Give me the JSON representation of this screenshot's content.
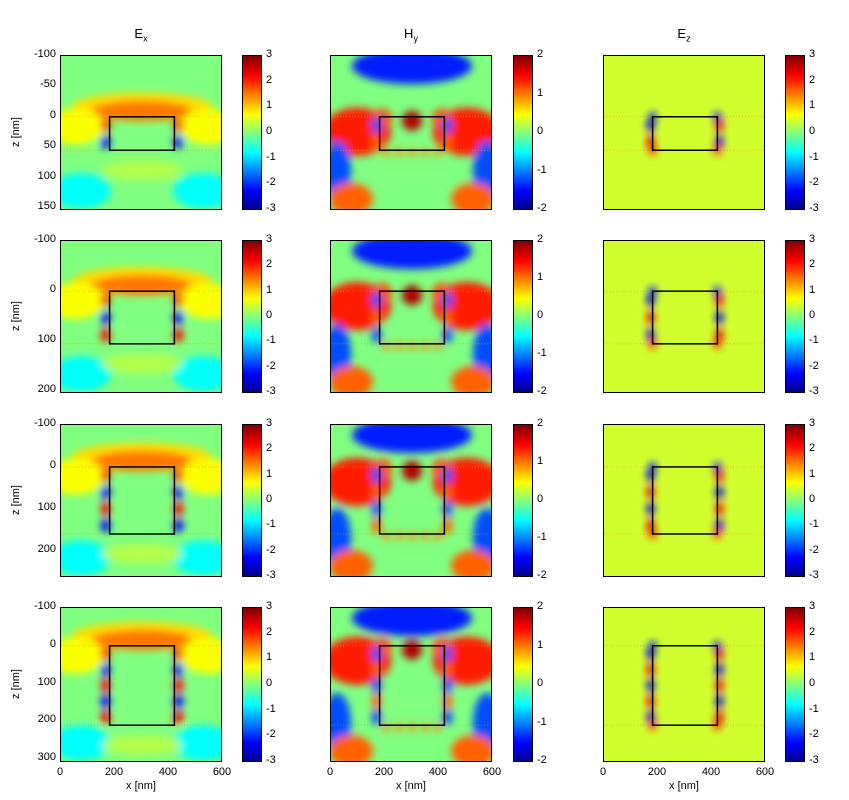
{
  "columns": [
    {
      "title_main": "E",
      "title_sub": "x",
      "clim": [
        -3,
        3
      ],
      "cbar_ticks": [
        "3",
        "2",
        "1",
        "0",
        "-1",
        "-2",
        "-3"
      ]
    },
    {
      "title_main": "H",
      "title_sub": "y",
      "clim": [
        -2,
        2
      ],
      "cbar_ticks": [
        "2",
        "1",
        "0",
        "-1",
        "-2"
      ]
    },
    {
      "title_main": "E",
      "title_sub": "z",
      "clim": [
        -3,
        3
      ],
      "cbar_ticks": [
        "3",
        "2",
        "1",
        "0",
        "-1",
        "-2",
        "-3"
      ]
    }
  ],
  "rows": [
    {
      "y_ticks": [
        "-100",
        "-50",
        "0",
        "50",
        "100",
        "150"
      ],
      "ylabel": "z [nm]"
    },
    {
      "y_ticks": [
        "-100",
        "0",
        "100",
        "200"
      ],
      "ylabel": "z [nm]"
    },
    {
      "y_ticks": [
        "-100",
        "0",
        "100",
        "200"
      ],
      "ylabel": "z [nm]"
    },
    {
      "y_ticks": [
        "-100",
        "0",
        "100",
        "200",
        "300"
      ],
      "ylabel": "z [nm]"
    }
  ],
  "x_ticks": [
    "0",
    "200",
    "400",
    "600"
  ],
  "xlabel": "x [nm]",
  "chart_data": {
    "type": "heatmap",
    "colormap": "jet",
    "x_range_nm": [
      0,
      600
    ],
    "rectangle_x_nm": [
      180,
      420
    ],
    "panels": [
      {
        "row": 0,
        "z_range_nm": [
          -100,
          155
        ],
        "rect_z_nm": [
          0,
          55
        ]
      },
      {
        "row": 1,
        "z_range_nm": [
          -100,
          205
        ],
        "rect_z_nm": [
          0,
          105
        ]
      },
      {
        "row": 2,
        "z_range_nm": [
          -100,
          265
        ],
        "rect_z_nm": [
          0,
          160
        ]
      },
      {
        "row": 3,
        "z_range_nm": [
          -100,
          310
        ],
        "rect_z_nm": [
          0,
          210
        ]
      }
    ],
    "fields": [
      "Ex",
      "Hy",
      "Ez"
    ],
    "color_limits": {
      "Ex": [
        -3,
        3
      ],
      "Hy": [
        -2,
        2
      ],
      "Ez": [
        -3,
        3
      ]
    }
  }
}
